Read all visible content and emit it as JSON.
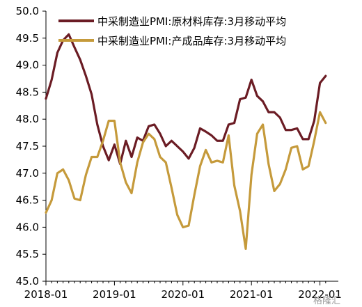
{
  "chart_data": {
    "type": "line",
    "title": "",
    "xlabel": "",
    "ylabel": "",
    "ylim": [
      45.0,
      50.0
    ],
    "y_ticks": [
      "45.0",
      "45.5",
      "46.0",
      "46.5",
      "47.0",
      "47.5",
      "48.0",
      "48.5",
      "49.0",
      "49.5",
      "50.0"
    ],
    "x_ticks": [
      "2018-01",
      "2019-01",
      "2020-01",
      "2021-01",
      "2022-01"
    ],
    "grid": false,
    "legend_position": "top-right",
    "x": [
      "2018-01",
      "2018-02",
      "2018-03",
      "2018-04",
      "2018-05",
      "2018-06",
      "2018-07",
      "2018-08",
      "2018-09",
      "2018-10",
      "2018-11",
      "2018-12",
      "2019-01",
      "2019-02",
      "2019-03",
      "2019-04",
      "2019-05",
      "2019-06",
      "2019-07",
      "2019-08",
      "2019-09",
      "2019-10",
      "2019-11",
      "2019-12",
      "2020-01",
      "2020-02",
      "2020-03",
      "2020-04",
      "2020-05",
      "2020-06",
      "2020-07",
      "2020-08",
      "2020-09",
      "2020-10",
      "2020-11",
      "2020-12",
      "2021-01",
      "2021-02",
      "2021-03",
      "2021-04",
      "2021-05",
      "2021-06",
      "2021-07",
      "2021-08",
      "2021-09",
      "2021-10",
      "2021-11",
      "2021-12",
      "2022-01",
      "2022-02"
    ],
    "series": [
      {
        "name": "中采制造业PMI:原材料库存:3月移动平均",
        "color": "#6b1c24",
        "values": [
          48.38,
          48.73,
          49.23,
          49.46,
          49.57,
          49.33,
          49.1,
          48.8,
          48.46,
          47.9,
          47.5,
          47.24,
          47.53,
          47.17,
          47.6,
          47.3,
          47.66,
          47.6,
          47.87,
          47.9,
          47.73,
          47.5,
          47.6,
          47.5,
          47.4,
          47.27,
          47.47,
          47.83,
          47.77,
          47.7,
          47.6,
          47.6,
          47.9,
          47.93,
          48.37,
          48.4,
          48.73,
          48.43,
          48.33,
          48.13,
          48.13,
          48.03,
          47.8,
          47.8,
          47.83,
          47.63,
          47.63,
          47.97,
          48.67,
          48.8
        ]
      },
      {
        "name": "中采制造业PMI:产成品库存:3月移动平均",
        "color": "#c59a3b",
        "values": [
          46.27,
          46.5,
          47.0,
          47.07,
          46.87,
          46.53,
          46.5,
          46.97,
          47.3,
          47.3,
          47.6,
          47.97,
          47.97,
          47.2,
          46.83,
          46.63,
          47.2,
          47.57,
          47.73,
          47.63,
          47.3,
          47.2,
          46.73,
          46.23,
          46.0,
          46.03,
          46.6,
          47.13,
          47.43,
          47.2,
          47.23,
          47.2,
          47.7,
          46.77,
          46.3,
          45.6,
          46.97,
          47.73,
          47.9,
          47.17,
          46.67,
          46.8,
          47.07,
          47.47,
          47.5,
          47.07,
          47.13,
          47.6,
          48.13,
          47.93
        ]
      }
    ]
  },
  "watermark": "格隆汇"
}
